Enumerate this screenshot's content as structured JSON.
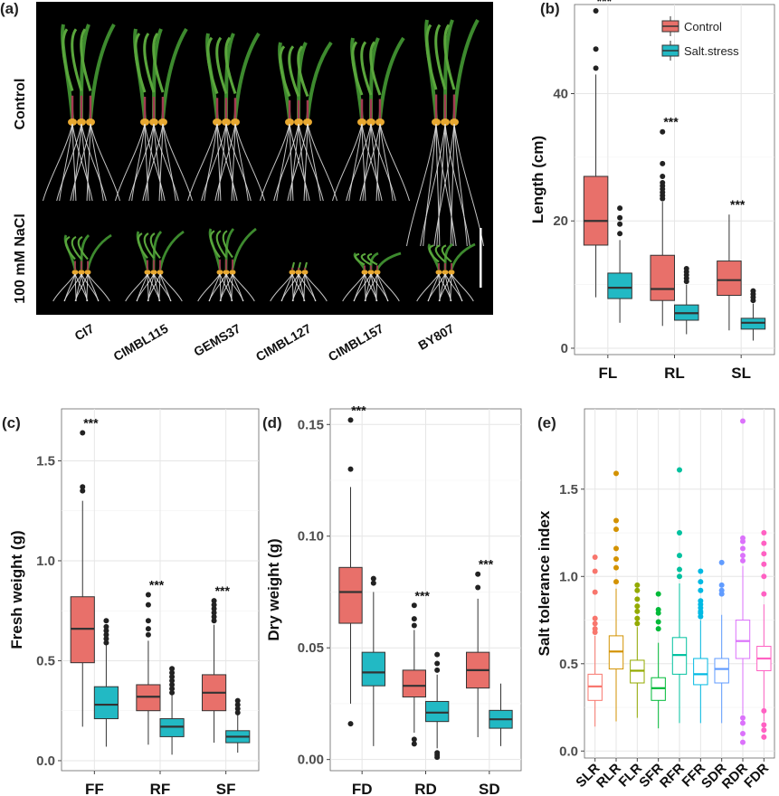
{
  "panel_labels": {
    "a": "(a)",
    "b": "(b)",
    "c": "(c)",
    "d": "(d)",
    "e": "(e)"
  },
  "colors": {
    "control": "#E8706A",
    "salt": "#22B9C4",
    "grid": "#e6e6e6",
    "panel_bg": "#ffffff",
    "photo_bg": "#000000"
  },
  "photo": {
    "row_labels": [
      "Control",
      "100 mM NaCl"
    ],
    "genotypes": [
      "CI7",
      "CIMBL115",
      "GEMS37",
      "CIMBL127",
      "CIMBL157",
      "BY807"
    ]
  },
  "chart_data": [
    {
      "id": "b",
      "type": "boxplot",
      "ylabel": "Length (cm)",
      "ylim": [
        -1,
        54
      ],
      "yticks": [
        0,
        20,
        40
      ],
      "legend": {
        "position": "top-right",
        "entries": [
          "Control",
          "Salt.stress"
        ]
      },
      "categories": [
        "FL",
        "RL",
        "SL"
      ],
      "significance": [
        "***",
        "***",
        "***"
      ],
      "series": [
        {
          "name": "Control",
          "boxes": [
            {
              "q1": 16.2,
              "median": 20,
              "q3": 27,
              "wlo": 8,
              "whi": 43,
              "outliers": [
                44,
                47,
                53
              ]
            },
            {
              "q1": 7.5,
              "median": 9.3,
              "q3": 14.6,
              "wlo": 3.5,
              "whi": 23,
              "outliers": [
                23.5,
                24,
                24.5,
                25,
                25.5,
                26,
                27,
                29,
                34
              ]
            },
            {
              "q1": 8.3,
              "median": 10.7,
              "q3": 13.7,
              "wlo": 2.8,
              "whi": 21,
              "outliers": []
            }
          ]
        },
        {
          "name": "Salt.stress",
          "boxes": [
            {
              "q1": 7.8,
              "median": 9.5,
              "q3": 11.8,
              "wlo": 4,
              "whi": 17,
              "outliers": [
                18,
                19.5,
                20.5,
                22
              ]
            },
            {
              "q1": 4.4,
              "median": 5.5,
              "q3": 6.8,
              "wlo": 2.2,
              "whi": 10,
              "outliers": [
                10.5,
                11,
                11.5,
                12,
                12.5
              ]
            },
            {
              "q1": 3,
              "median": 4,
              "q3": 4.7,
              "wlo": 1.2,
              "whi": 7,
              "outliers": [
                7.5,
                8,
                8.5,
                9
              ]
            }
          ]
        }
      ]
    },
    {
      "id": "c",
      "type": "boxplot",
      "ylabel": "Fresh weight (g)",
      "ylim": [
        -0.05,
        1.76
      ],
      "yticks": [
        0.0,
        0.5,
        1.0,
        1.5
      ],
      "tick_decimals": 1,
      "categories": [
        "FF",
        "RF",
        "SF"
      ],
      "significance": [
        "***",
        "***",
        "***"
      ],
      "series": [
        {
          "name": "Control",
          "boxes": [
            {
              "q1": 0.49,
              "median": 0.66,
              "q3": 0.82,
              "wlo": 0.17,
              "whi": 1.3,
              "outliers": [
                1.35,
                1.37,
                1.64
              ]
            },
            {
              "q1": 0.25,
              "median": 0.32,
              "q3": 0.38,
              "wlo": 0.08,
              "whi": 0.6,
              "outliers": [
                0.63,
                0.66,
                0.7,
                0.78,
                0.83
              ]
            },
            {
              "q1": 0.25,
              "median": 0.34,
              "q3": 0.43,
              "wlo": 0.09,
              "whi": 0.68,
              "outliers": [
                0.7,
                0.72,
                0.74,
                0.76,
                0.78,
                0.8
              ]
            }
          ]
        },
        {
          "name": "Salt.stress",
          "boxes": [
            {
              "q1": 0.21,
              "median": 0.28,
              "q3": 0.37,
              "wlo": 0.07,
              "whi": 0.58,
              "outliers": [
                0.59,
                0.61,
                0.63,
                0.65,
                0.67,
                0.7
              ]
            },
            {
              "q1": 0.12,
              "median": 0.17,
              "q3": 0.21,
              "wlo": 0.03,
              "whi": 0.33,
              "outliers": [
                0.34,
                0.36,
                0.38,
                0.4,
                0.42,
                0.44,
                0.46
              ]
            },
            {
              "q1": 0.09,
              "median": 0.12,
              "q3": 0.15,
              "wlo": 0.04,
              "whi": 0.23,
              "outliers": [
                0.24,
                0.26,
                0.28,
                0.3
              ]
            }
          ]
        }
      ]
    },
    {
      "id": "d",
      "type": "boxplot",
      "ylabel": "Dry weight (g)",
      "ylim": [
        -0.005,
        0.157
      ],
      "yticks": [
        0.0,
        0.05,
        0.1,
        0.15
      ],
      "tick_decimals": 2,
      "categories": [
        "FD",
        "RD",
        "SD"
      ],
      "significance": [
        "***",
        "***",
        "***"
      ],
      "series": [
        {
          "name": "Control",
          "boxes": [
            {
              "q1": 0.061,
              "median": 0.075,
              "q3": 0.086,
              "wlo": 0.025,
              "whi": 0.122,
              "outliers": [
                0.016,
                0.13,
                0.152
              ]
            },
            {
              "q1": 0.028,
              "median": 0.033,
              "q3": 0.04,
              "wlo": 0.012,
              "whi": 0.058,
              "outliers": [
                0.007,
                0.009,
                0.06,
                0.063,
                0.069
              ]
            },
            {
              "q1": 0.032,
              "median": 0.04,
              "q3": 0.048,
              "wlo": 0.01,
              "whi": 0.072,
              "outliers": [
                0.077,
                0.083
              ]
            }
          ]
        },
        {
          "name": "Salt.stress",
          "boxes": [
            {
              "q1": 0.033,
              "median": 0.039,
              "q3": 0.048,
              "wlo": 0.006,
              "whi": 0.075,
              "outliers": [
                0.079,
                0.081
              ]
            },
            {
              "q1": 0.017,
              "median": 0.021,
              "q3": 0.026,
              "wlo": 0.005,
              "whi": 0.038,
              "outliers": [
                0.001,
                0.002,
                0.003,
                0.04,
                0.043,
                0.047
              ]
            },
            {
              "q1": 0.014,
              "median": 0.018,
              "q3": 0.022,
              "wlo": 0.006,
              "whi": 0.034,
              "outliers": []
            }
          ]
        }
      ]
    },
    {
      "id": "e",
      "type": "boxplot",
      "ylabel": "Salt tolerance index",
      "ylim": [
        -0.04,
        1.96
      ],
      "yticks": [
        0.0,
        0.5,
        1.0,
        1.5
      ],
      "tick_decimals": 1,
      "categories": [
        "SLR",
        "RLR",
        "FLR",
        "SFR",
        "RFR",
        "FFR",
        "SDR",
        "RDR",
        "FDR"
      ],
      "colors": [
        "#F8766D",
        "#D39200",
        "#93AA00",
        "#00BA38",
        "#00C19F",
        "#00B9E3",
        "#619CFF",
        "#DB72FB",
        "#FF61C3"
      ],
      "boxes": [
        {
          "q1": 0.29,
          "median": 0.37,
          "q3": 0.44,
          "wlo": 0.14,
          "whi": 0.66,
          "outliers": [
            0.68,
            0.7,
            0.73,
            0.76,
            0.91,
            1.03,
            1.11
          ]
        },
        {
          "q1": 0.47,
          "median": 0.57,
          "q3": 0.66,
          "wlo": 0.17,
          "whi": 0.93,
          "outliers": [
            0.97,
            1.05,
            1.1,
            1.16,
            1.27,
            1.32,
            1.59
          ]
        },
        {
          "q1": 0.39,
          "median": 0.46,
          "q3": 0.52,
          "wlo": 0.19,
          "whi": 0.71,
          "outliers": [
            0.73,
            0.76,
            0.8,
            0.83,
            0.87,
            0.92,
            0.95
          ]
        },
        {
          "q1": 0.29,
          "median": 0.36,
          "q3": 0.42,
          "wlo": 0.13,
          "whi": 0.62,
          "outliers": [
            0.7,
            0.74,
            0.79,
            0.81,
            0.9
          ]
        },
        {
          "q1": 0.44,
          "median": 0.55,
          "q3": 0.65,
          "wlo": 0.16,
          "whi": 0.96,
          "outliers": [
            1.0,
            1.04,
            1.12,
            1.25,
            1.61
          ]
        },
        {
          "q1": 0.38,
          "median": 0.44,
          "q3": 0.53,
          "wlo": 0.16,
          "whi": 0.75,
          "outliers": [
            0.77,
            0.79,
            0.8,
            0.82,
            0.84,
            0.86,
            0.92,
            0.97,
            1.03
          ]
        },
        {
          "q1": 0.39,
          "median": 0.47,
          "q3": 0.53,
          "wlo": 0.16,
          "whi": 0.78,
          "outliers": [
            0.9,
            0.92,
            0.95,
            1.08
          ]
        },
        {
          "q1": 0.53,
          "median": 0.63,
          "q3": 0.75,
          "wlo": 0.21,
          "whi": 1.06,
          "outliers": [
            0.05,
            0.1,
            0.16,
            0.19,
            1.09,
            1.12,
            1.16,
            1.2,
            1.22,
            1.89
          ]
        },
        {
          "q1": 0.46,
          "median": 0.53,
          "q3": 0.6,
          "wlo": 0.17,
          "whi": 0.84,
          "outliers": [
            0.08,
            0.12,
            0.15,
            0.23,
            0.9,
            1.0,
            1.07,
            1.13,
            1.19,
            1.25
          ]
        }
      ]
    }
  ]
}
